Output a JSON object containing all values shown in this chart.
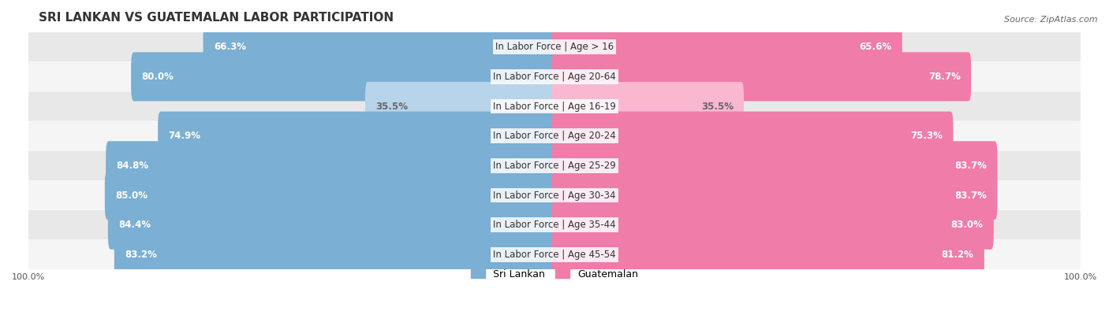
{
  "title": "SRI LANKAN VS GUATEMALAN LABOR PARTICIPATION",
  "source": "Source: ZipAtlas.com",
  "categories": [
    "In Labor Force | Age > 16",
    "In Labor Force | Age 20-64",
    "In Labor Force | Age 16-19",
    "In Labor Force | Age 20-24",
    "In Labor Force | Age 25-29",
    "In Labor Force | Age 30-34",
    "In Labor Force | Age 35-44",
    "In Labor Force | Age 45-54"
  ],
  "sri_lankan": [
    66.3,
    80.0,
    35.5,
    74.9,
    84.8,
    85.0,
    84.4,
    83.2
  ],
  "guatemalan": [
    65.6,
    78.7,
    35.5,
    75.3,
    83.7,
    83.7,
    83.0,
    81.2
  ],
  "sri_lankan_color": "#7bafd4",
  "guatemalan_color": "#f07caa",
  "sri_lankan_light_color": "#b8d4eb",
  "guatemalan_light_color": "#f9b8d0",
  "bar_bg_color": "#f0f0f0",
  "row_bg_colors": [
    "#e8e8e8",
    "#f5f5f5"
  ],
  "max_value": 100.0,
  "label_fontsize": 8.5,
  "title_fontsize": 11,
  "legend_fontsize": 9
}
